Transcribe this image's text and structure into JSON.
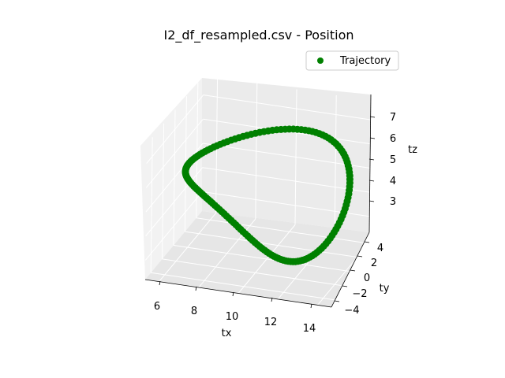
{
  "chart_data": {
    "type": "scatter",
    "projection": "3d",
    "title": "I2_df_resampled.csv - Position",
    "xlabel": "tx",
    "ylabel": "ty",
    "zlabel": "tz",
    "xticks": [
      "6",
      "8",
      "10",
      "12",
      "14"
    ],
    "yticks": [
      "−4",
      "−2",
      "0",
      "2",
      "4"
    ],
    "zticks": [
      "3",
      "4",
      "5",
      "6",
      "7"
    ],
    "xlim": [
      5.3,
      14.7
    ],
    "ylim": [
      -5.0,
      5.0
    ],
    "zlim": [
      2.2,
      7.8
    ],
    "grid": true,
    "legend": {
      "placement": "top-right",
      "entries": [
        "Trajectory"
      ]
    },
    "series": [
      {
        "name": "Trajectory",
        "color": "#008000",
        "marker": "circle",
        "parametric": {
          "description": "figure-eight loop sampled uniformly over t in [0, 2π)",
          "n_points": 150,
          "tx": "10 + 4*sin(t)",
          "ty": "4*sin(t)*cos(t)",
          "tz": "5 + 2.5*cos(t)"
        }
      }
    ]
  }
}
